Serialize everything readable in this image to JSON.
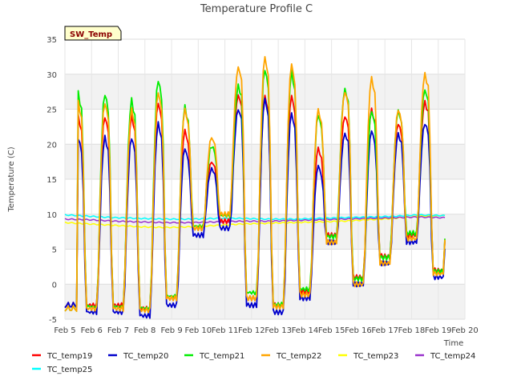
{
  "chart_data": {
    "type": "line",
    "title": "Temperature Profile C",
    "xlabel": "Time",
    "ylabel": "Temperature (C)",
    "badge": "SW_Temp",
    "xlim": [
      5,
      20
    ],
    "ylim": [
      -5,
      35
    ],
    "x_ticks": [
      5,
      6,
      7,
      8,
      9,
      10,
      11,
      12,
      13,
      14,
      15,
      16,
      17,
      18,
      19,
      20
    ],
    "x_tick_labels": [
      "Feb 5",
      "Feb 6",
      "Feb 7",
      "Feb 8",
      "Feb 9",
      "Feb 10",
      "Feb 11",
      "Feb 12",
      "Feb 13",
      "Feb 14",
      "Feb 15",
      "Feb 16",
      "Feb 17",
      "Feb 18",
      "Feb 19",
      "Feb 20"
    ],
    "y_ticks": [
      -5,
      0,
      5,
      10,
      15,
      20,
      25,
      30,
      35
    ],
    "y_tick_labels": [
      "-5",
      "0",
      "5",
      "10",
      "15",
      "20",
      "25",
      "30",
      "35"
    ],
    "grid": true,
    "band_background": true,
    "legend_position": "bottom",
    "x_step_days": 0.0625,
    "series": [
      {
        "name": "TC_temp19",
        "color": "#ff0000",
        "kind": "daily",
        "offset": 0.0,
        "peaks": [
          24,
          24,
          26,
          22,
          17.5,
          27,
          27,
          27,
          19.5,
          24,
          25,
          23,
          26,
          27
        ],
        "troughs": [
          -3,
          -3,
          -3.5,
          -2,
          8,
          9,
          -2,
          -3,
          -1,
          7,
          1,
          4,
          7,
          2,
          -1.5
        ]
      },
      {
        "name": "TC_temp20",
        "color": "#0000cc",
        "kind": "daily",
        "offset": -1.0,
        "peaks": [
          22,
          22,
          24,
          20.5,
          17.5,
          26,
          27.5,
          25.5,
          18,
          22.5,
          23,
          22.5,
          24,
          26.5
        ],
        "troughs": [
          -3,
          -3,
          -3.5,
          -2,
          8,
          9,
          -2,
          -3,
          -1,
          7,
          1,
          4,
          7,
          2,
          -1.5
        ]
      },
      {
        "name": "TC_temp21",
        "color": "#00ee00",
        "kind": "daily",
        "offset": 0.3,
        "peaks": [
          27,
          26,
          29,
          25,
          19.5,
          28,
          30.5,
          30,
          24,
          27.5,
          24.5,
          24.5,
          27.5,
          28
        ],
        "troughs": [
          -3.5,
          -3.5,
          -3.7,
          -2,
          8,
          9.5,
          -1.5,
          -3.2,
          -1,
          6.5,
          0.5,
          3.5,
          7,
          1.5,
          -1.5
        ]
      },
      {
        "name": "TC_temp22",
        "color": "#ffa500",
        "kind": "daily",
        "offset": 0.0,
        "peaks": [
          26,
          25,
          27.5,
          25,
          21,
          31,
          32.5,
          31.5,
          25,
          27.5,
          29.5,
          25,
          30,
          30.5
        ],
        "troughs": [
          -3.5,
          -3.5,
          -3.7,
          -2,
          8,
          10,
          -2,
          -3.2,
          -1.5,
          6,
          0,
          3,
          6.5,
          1.5,
          -1.8
        ]
      },
      {
        "name": "TC_temp23",
        "color": "#ffff00",
        "kind": "flat",
        "values": [
          8.8,
          8.6,
          8.4,
          8.2,
          8.1,
          8.2,
          8.4,
          8.6,
          8.7,
          8.8,
          8.9,
          9.0,
          9.2,
          9.4,
          9.7,
          9.8
        ]
      },
      {
        "name": "TC_temp24",
        "color": "#9932cc",
        "kind": "flat",
        "values": [
          9.3,
          9.2,
          9.0,
          8.9,
          8.8,
          8.8,
          8.9,
          9.0,
          9.0,
          9.1,
          9.2,
          9.3,
          9.4,
          9.5,
          9.6,
          9.5
        ]
      },
      {
        "name": "TC_temp25",
        "color": "#00ffff",
        "kind": "flat",
        "values": [
          9.9,
          9.7,
          9.5,
          9.4,
          9.3,
          9.3,
          9.4,
          9.4,
          9.3,
          9.3,
          9.4,
          9.5,
          9.6,
          9.7,
          9.9,
          9.8
        ]
      }
    ]
  }
}
